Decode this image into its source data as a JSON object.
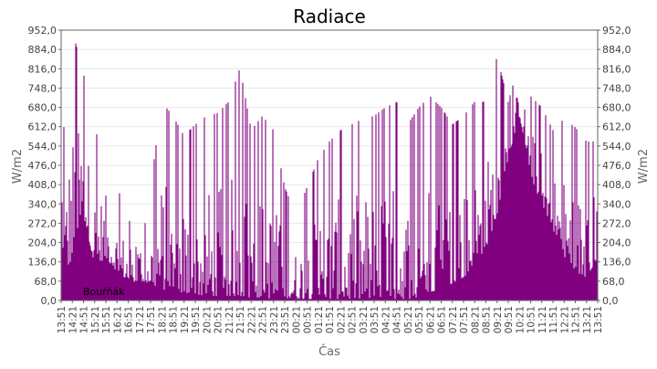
{
  "chart_data": {
    "type": "area",
    "title": "Radiace",
    "xlabel": "Čas",
    "ylabel_left": "W/m2",
    "ylabel_right": "W/m2",
    "ylim": [
      0,
      952
    ],
    "yticks": [
      "0,0",
      "68,0",
      "136,0",
      "204,0",
      "272,0",
      "340,0",
      "408,0",
      "476,0",
      "544,0",
      "612,0",
      "680,0",
      "748,0",
      "816,0",
      "884,0",
      "952,0"
    ],
    "xticks": [
      "13:51",
      "14:21",
      "14:51",
      "15:21",
      "15:51",
      "16:21",
      "16:51",
      "17:21",
      "17:51",
      "18:21",
      "18:51",
      "19:21",
      "19:51",
      "20:21",
      "20:51",
      "21:21",
      "21:51",
      "22:21",
      "22:51",
      "23:21",
      "23:51",
      "00:21",
      "00:51",
      "01:21",
      "01:51",
      "02:21",
      "02:51",
      "03:21",
      "03:51",
      "04:21",
      "04:51",
      "05:21",
      "05:51",
      "06:21",
      "06:51",
      "07:21",
      "07:51",
      "08:21",
      "08:51",
      "09:21",
      "09:51",
      "10:21",
      "10:51",
      "11:21",
      "11:51",
      "12:21",
      "12:51",
      "13:21",
      "13:51"
    ],
    "grid": true,
    "legend_position": "bottom-left",
    "series": [
      {
        "name": "Bouřňák",
        "color": "#800080",
        "x": [
          "13:51",
          "14:21",
          "14:51",
          "15:21",
          "15:51",
          "16:21",
          "16:51",
          "17:21",
          "17:51",
          "18:21",
          "18:51",
          "19:21",
          "19:51",
          "20:21",
          "20:51",
          "21:21",
          "21:51",
          "22:21",
          "22:51",
          "23:21",
          "23:51",
          "00:21",
          "00:51",
          "01:21",
          "01:51",
          "02:21",
          "02:51",
          "03:21",
          "03:51",
          "04:21",
          "04:51",
          "05:21",
          "05:51",
          "06:21",
          "06:51",
          "07:21",
          "07:51",
          "08:21",
          "08:51",
          "09:21",
          "09:51",
          "10:21",
          "10:51",
          "11:21",
          "11:51",
          "12:21",
          "12:51",
          "13:21",
          "13:51"
        ],
        "low": [
          60,
          150,
          300,
          120,
          150,
          100,
          70,
          60,
          60,
          40,
          30,
          20,
          20,
          15,
          15,
          15,
          15,
          10,
          10,
          5,
          5,
          5,
          5,
          5,
          5,
          5,
          5,
          5,
          5,
          5,
          5,
          5,
          10,
          30,
          40,
          60,
          80,
          120,
          180,
          300,
          500,
          650,
          450,
          300,
          250,
          150,
          100,
          80,
          150
        ],
        "high": [
          500,
          952,
          800,
          600,
          520,
          400,
          300,
          140,
          400,
          700,
          650,
          580,
          620,
          650,
          660,
          700,
          820,
          600,
          650,
          600,
          400,
          300,
          400,
          500,
          560,
          600,
          620,
          640,
          650,
          680,
          700,
          620,
          680,
          720,
          680,
          620,
          650,
          700,
          700,
          860,
          700,
          840,
          720,
          680,
          600,
          640,
          610,
          560,
          560
        ]
      }
    ]
  }
}
